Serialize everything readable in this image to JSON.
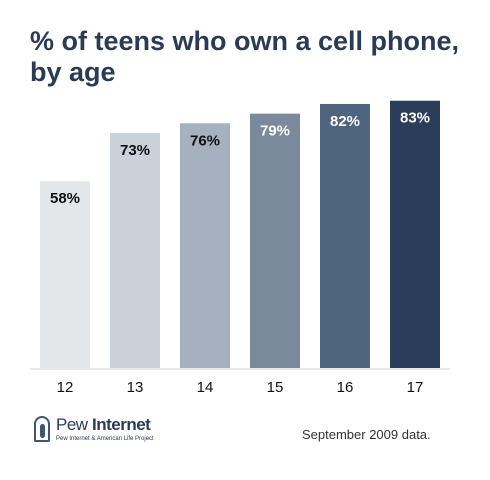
{
  "chart_data": {
    "type": "bar",
    "title": "% of teens who own a cell phone, by age",
    "categories": [
      "12",
      "13",
      "14",
      "15",
      "16",
      "17"
    ],
    "values": [
      58,
      73,
      76,
      79,
      82,
      83
    ],
    "labels": [
      "58%",
      "73%",
      "76%",
      "79%",
      "82%",
      "83%"
    ],
    "colors": [
      "#e4e7ea",
      "#cbd1d9",
      "#a6b1bf",
      "#7a899c",
      "#4f647e",
      "#2b3d5b"
    ],
    "label_colors": [
      "#111111",
      "#111111",
      "#111111",
      "#ffffff",
      "#ffffff",
      "#ffffff"
    ],
    "xlabel": "",
    "ylabel": "",
    "ylim": [
      0,
      100
    ],
    "grid": false,
    "legend": "none"
  },
  "source": {
    "logo_pew": "Pew",
    "logo_internet": "Internet",
    "logo_subtitle": "Pew Internet & American Life Project",
    "footnote": "September 2009 data."
  }
}
